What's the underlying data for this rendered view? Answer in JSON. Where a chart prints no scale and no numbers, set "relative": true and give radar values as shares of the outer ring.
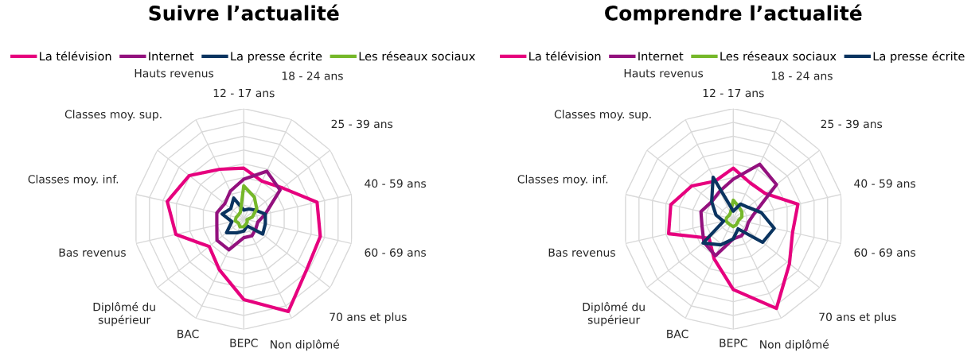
{
  "chart_data": [
    {
      "type": "radar",
      "title": "Suivre l’actualité",
      "relative": true,
      "grid": true,
      "legend": "top",
      "categories": [
        "12 - 17 ans",
        "18 - 24 ans",
        "25 - 39 ans",
        "40 - 59 ans",
        "60 - 69 ans",
        "70 ans et plus",
        "Non diplômé",
        "BEPC",
        "BAC",
        "Diplômé du\nsupérieur",
        "Bas revenus",
        "Classes moy. inf.",
        "Classes moy. sup.",
        "Hauts revenus"
      ],
      "series": [
        {
          "name": "La télévision",
          "color": "#e6007e",
          "values": [
            0.46,
            0.38,
            0.45,
            0.68,
            0.71,
            0.73,
            0.93,
            0.73,
            0.51,
            0.4,
            0.63,
            0.71,
            0.63,
            0.5
          ]
        },
        {
          "name": "Internet",
          "color": "#93117e",
          "values": [
            0.36,
            0.48,
            0.42,
            0.2,
            0.13,
            0.14,
            0.17,
            0.17,
            0.31,
            0.31,
            0.25,
            0.25,
            0.22,
            0.28
          ]
        },
        {
          "name": "La presse écrite",
          "color": "#0a3460",
          "values": [
            0.08,
            0.1,
            0.13,
            0.2,
            0.2,
            0.22,
            0.07,
            0.11,
            0.14,
            0.2,
            0.11,
            0.2,
            0.15,
            0.21
          ]
        },
        {
          "name": "Les réseaux sociaux",
          "color": "#76b82a",
          "values": [
            0.3,
            0.22,
            0.15,
            0.08,
            0.03,
            0.04,
            0.05,
            0.07,
            0.08,
            0.06,
            0.08,
            0.07,
            0.06,
            0.07
          ]
        }
      ]
    },
    {
      "type": "radar",
      "title": "Comprendre l’actualité",
      "relative": true,
      "grid": true,
      "legend": "top",
      "categories": [
        "12 - 17 ans",
        "18 - 24 ans",
        "25 - 39 ans",
        "40 - 59 ans",
        "60 - 69 ans",
        "70 ans et plus",
        "Non diplômé",
        "BEPC",
        "BAC",
        "Diplômé du\nsupérieur",
        "Bas revenus",
        "Classes moy. inf.",
        "Classes moy. sup.",
        "Hauts revenus"
      ],
      "series": [
        {
          "name": "La télévision",
          "color": "#e6007e",
          "values": [
            0.46,
            0.36,
            0.37,
            0.6,
            0.55,
            0.65,
            0.9,
            0.64,
            0.4,
            0.28,
            0.6,
            0.58,
            0.48,
            0.38
          ]
        },
        {
          "name": "Internet",
          "color": "#93117e",
          "values": [
            0.36,
            0.55,
            0.5,
            0.19,
            0.14,
            0.15,
            0.17,
            0.18,
            0.37,
            0.34,
            0.29,
            0.3,
            0.25,
            0.28
          ]
        },
        {
          "name": "Les réseaux sociaux",
          "color": "#76b82a",
          "values": [
            0.17,
            0.12,
            0.1,
            0.08,
            0.05,
            0.05,
            0.06,
            0.07,
            0.06,
            0.06,
            0.07,
            0.06,
            0.05,
            0.06
          ]
        },
        {
          "name": "La presse écrite",
          "color": "#0a3460",
          "values": [
            0.07,
            0.15,
            0.17,
            0.26,
            0.38,
            0.34,
            0.1,
            0.18,
            0.26,
            0.35,
            0.09,
            0.16,
            0.25,
            0.42
          ]
        }
      ]
    }
  ]
}
